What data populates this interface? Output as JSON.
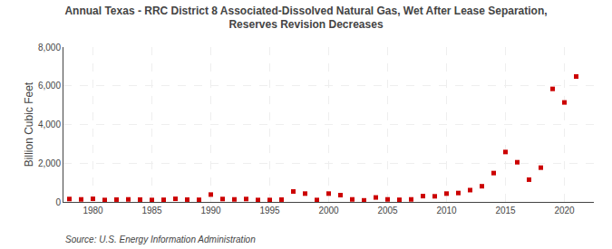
{
  "chart_data": {
    "type": "scatter",
    "title": "Annual Texas - RRC District 8 Associated-Dissolved Natural Gas, Wet After Lease Separation,\nReserves Revision Decreases",
    "ylabel": "Billion Cubic Feet",
    "annotations": [
      "Source: U.S. Energy Information Administration"
    ],
    "x": [
      1978,
      1979,
      1980,
      1981,
      1982,
      1983,
      1984,
      1985,
      1986,
      1987,
      1988,
      1989,
      1990,
      1991,
      1992,
      1993,
      1994,
      1995,
      1996,
      1997,
      1998,
      1999,
      2000,
      2001,
      2002,
      2003,
      2004,
      2005,
      2006,
      2007,
      2008,
      2009,
      2010,
      2011,
      2012,
      2013,
      2014,
      2015,
      2016,
      2017,
      2018,
      2019,
      2020,
      2021
    ],
    "values": [
      150,
      130,
      160,
      100,
      120,
      130,
      120,
      100,
      110,
      160,
      120,
      110,
      380,
      150,
      130,
      150,
      100,
      100,
      120,
      540,
      430,
      100,
      430,
      350,
      130,
      80,
      230,
      130,
      110,
      130,
      300,
      290,
      430,
      460,
      610,
      810,
      1490,
      2580,
      2050,
      1150,
      1770,
      5840,
      5140,
      6480
    ],
    "color": "#cc0000",
    "marker": "square",
    "xlim": [
      1977.5,
      2022.5
    ],
    "xticks": [
      1980,
      1985,
      1990,
      1995,
      2000,
      2005,
      2010,
      2015,
      2020
    ],
    "ylim": [
      0,
      8000
    ],
    "yticks": [
      0,
      {
        "value": 2000,
        "label": "2,000"
      },
      {
        "value": 4000,
        "label": "4,000"
      },
      {
        "value": 6000,
        "label": "6,000"
      },
      {
        "value": 8000,
        "label": "8,000"
      }
    ],
    "grid": true
  }
}
